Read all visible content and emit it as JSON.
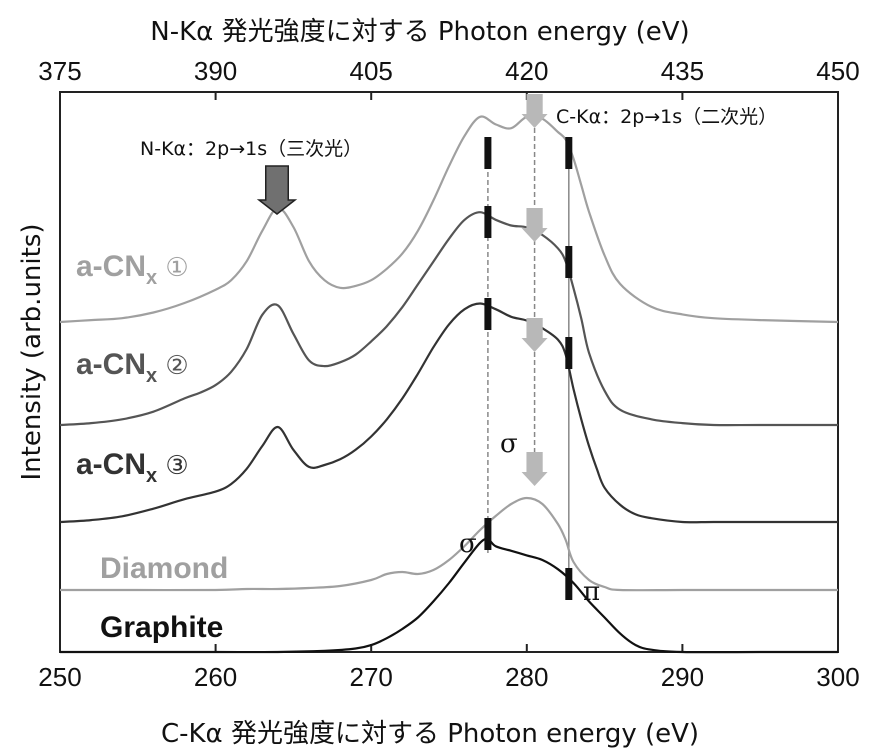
{
  "chart_data": {
    "type": "line",
    "title": "",
    "xlabel": "C-Kα 発光強度に対する Photon energy (eV)",
    "x2label": "N-Kα 発光強度に対する Photon energy (eV)",
    "ylabel": "Intensity (arb.units)",
    "xlim": [
      250,
      300
    ],
    "x2lim": [
      375,
      450
    ],
    "xticks": [
      "250",
      "260",
      "270",
      "280",
      "290",
      "300"
    ],
    "x2ticks": [
      "375",
      "390",
      "405",
      "420",
      "435",
      "450"
    ],
    "grid": false,
    "series": [
      {
        "name": "a-CNx ①",
        "label_main": "a-CN",
        "label_sub": "x",
        "label_num": "①",
        "color": "#a0a0a0",
        "baseline": 0.0,
        "x": [
          250,
          252,
          254,
          256,
          258,
          260,
          261,
          262,
          263,
          264,
          265,
          266,
          267,
          268,
          269,
          270,
          271,
          272,
          273,
          274,
          275,
          276,
          277,
          278,
          279,
          280,
          281,
          282,
          282.5,
          283,
          283.5,
          284,
          285,
          286,
          288,
          290,
          292,
          295,
          300
        ],
        "y": [
          0.0,
          0.01,
          0.02,
          0.05,
          0.1,
          0.17,
          0.22,
          0.32,
          0.48,
          0.6,
          0.5,
          0.32,
          0.22,
          0.18,
          0.19,
          0.22,
          0.28,
          0.36,
          0.48,
          0.64,
          0.82,
          0.98,
          1.08,
          1.04,
          1.02,
          1.08,
          1.07,
          1.0,
          0.96,
          0.86,
          0.72,
          0.58,
          0.35,
          0.2,
          0.08,
          0.04,
          0.02,
          0.01,
          0.0
        ]
      },
      {
        "name": "a-CNx ②",
        "label_main": "a-CN",
        "label_sub": "x",
        "label_num": "②",
        "color": "#555555",
        "baseline": 0.0,
        "x": [
          250,
          252,
          254,
          256,
          258,
          259,
          260,
          261,
          262,
          263,
          264,
          265,
          266,
          267,
          268,
          269,
          270,
          271,
          272,
          273,
          274,
          275,
          276,
          277,
          278,
          279,
          280,
          281,
          282,
          282.5,
          283,
          283.5,
          284,
          285,
          286,
          288,
          290,
          292,
          295,
          300
        ],
        "y": [
          0.0,
          0.01,
          0.03,
          0.07,
          0.14,
          0.17,
          0.21,
          0.28,
          0.4,
          0.58,
          0.63,
          0.48,
          0.34,
          0.31,
          0.33,
          0.37,
          0.44,
          0.52,
          0.62,
          0.74,
          0.86,
          0.98,
          1.08,
          1.12,
          1.08,
          1.05,
          1.04,
          1.0,
          0.93,
          0.86,
          0.72,
          0.56,
          0.38,
          0.18,
          0.08,
          0.03,
          0.01,
          0.0,
          0.0,
          0.0
        ]
      },
      {
        "name": "a-CNx ③",
        "label_main": "a-CN",
        "label_sub": "x",
        "label_num": "③",
        "color": "#333333",
        "baseline": 0.0,
        "x": [
          250,
          252,
          254,
          256,
          258,
          260,
          261,
          262,
          263,
          264,
          265,
          266,
          267,
          268,
          269,
          270,
          271,
          272,
          273,
          274,
          275,
          276,
          277,
          278,
          279,
          280,
          281,
          282,
          282.5,
          283,
          283.5,
          284,
          284.5,
          285,
          286,
          287,
          288,
          290,
          292,
          295,
          300
        ],
        "y": [
          0.0,
          0.01,
          0.03,
          0.07,
          0.12,
          0.16,
          0.2,
          0.28,
          0.4,
          0.5,
          0.38,
          0.29,
          0.3,
          0.33,
          0.38,
          0.45,
          0.54,
          0.65,
          0.78,
          0.92,
          1.04,
          1.12,
          1.15,
          1.12,
          1.08,
          1.06,
          1.02,
          0.96,
          0.88,
          0.7,
          0.54,
          0.4,
          0.28,
          0.18,
          0.09,
          0.04,
          0.02,
          0.0,
          0.0,
          0.0,
          0.0
        ]
      },
      {
        "name": "Diamond",
        "color": "#a0a0a0",
        "baseline": 0.0,
        "x": [
          250,
          255,
          260,
          262,
          264,
          266,
          268,
          270,
          271,
          272,
          273,
          274,
          275,
          276,
          277,
          278,
          279,
          280,
          281,
          282,
          282.5,
          283,
          284,
          285,
          286,
          290,
          295,
          300
        ],
        "y": [
          0.0,
          0.0,
          0.0,
          0.01,
          0.01,
          0.02,
          0.04,
          0.1,
          0.16,
          0.18,
          0.16,
          0.2,
          0.3,
          0.44,
          0.6,
          0.74,
          0.86,
          0.92,
          0.86,
          0.66,
          0.5,
          0.28,
          0.1,
          0.03,
          0.0,
          0.0,
          0.0,
          0.0
        ]
      },
      {
        "name": "Graphite",
        "color": "#111111",
        "baseline": 0.0,
        "x": [
          250,
          255,
          260,
          264,
          267,
          269,
          270,
          271,
          272,
          273,
          274,
          275,
          276,
          277,
          277.5,
          278,
          279,
          280,
          281,
          282,
          283,
          284,
          285,
          286,
          287,
          288,
          290,
          295,
          300
        ],
        "y": [
          0.0,
          0.0,
          0.0,
          0.0,
          0.01,
          0.03,
          0.06,
          0.12,
          0.2,
          0.3,
          0.44,
          0.6,
          0.78,
          0.95,
          0.98,
          0.92,
          0.88,
          0.84,
          0.8,
          0.72,
          0.6,
          0.44,
          0.3,
          0.16,
          0.06,
          0.02,
          0.0,
          0.0,
          0.0
        ]
      }
    ],
    "markers": [
      {
        "x": 277.5,
        "label": "σ"
      },
      {
        "x": 280.5,
        "label": "σ"
      },
      {
        "x": 282.7,
        "label": "π"
      }
    ],
    "annotations": {
      "n_ka": "N-Kα：2p→1s（三次光）",
      "c_ka": "C-Kα：2p→1s（二次光）"
    },
    "colors": {
      "light_gray": "#a0a0a0",
      "dark_gray": "#555555",
      "black": "#111111",
      "arrow_gray": "#b8b8b8",
      "arrow_dark": "#707070"
    }
  }
}
